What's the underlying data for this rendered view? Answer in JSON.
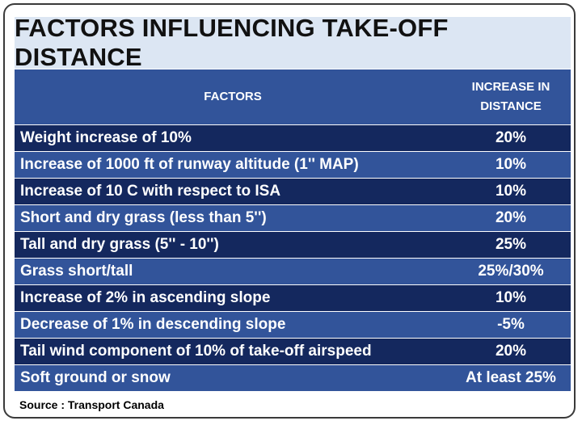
{
  "title": "FACTORS INFLUENCING TAKE-OFF DISTANCE",
  "header": {
    "factors": "FACTORS",
    "increase_line1": "INCREASE IN",
    "increase_line2": "DISTANCE"
  },
  "rows": [
    {
      "factor": "Weight increase of 10%",
      "value": "20%"
    },
    {
      "factor": "Increase of 1000 ft of runway altitude (1'' MAP)",
      "value": "10%"
    },
    {
      "factor": "Increase of 10 C with respect to ISA",
      "value": "10%"
    },
    {
      "factor": "Short and dry grass (less than 5'')",
      "value": "20%"
    },
    {
      "factor": "Tall and dry grass (5'' - 10'')",
      "value": "25%"
    },
    {
      "factor": "Grass short/tall",
      "value": "25%/30%"
    },
    {
      "factor": "Increase of 2% in ascending slope",
      "value": "10%"
    },
    {
      "factor": "Decrease of 1% in descending slope",
      "value": "-5%"
    },
    {
      "factor": "Tail wind component of 10% of take-off airspeed",
      "value": "20%"
    },
    {
      "factor": "Soft ground or snow",
      "value": "At least 25%"
    }
  ],
  "source": "Source : Transport Canada",
  "colors": {
    "title_bg": "#dce6f3",
    "row_dark": "#14285e",
    "row_light": "#32549a"
  }
}
